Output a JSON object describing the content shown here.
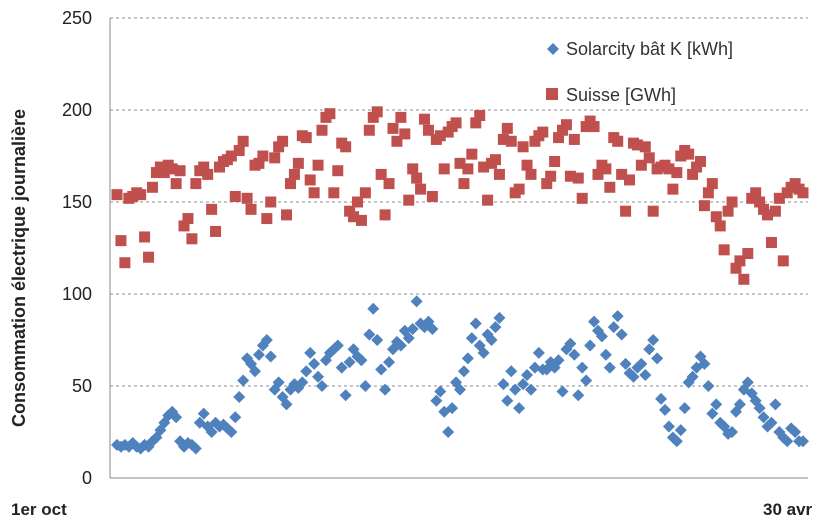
{
  "chart_data": {
    "type": "scatter",
    "ylabel": "Consommation électrique journalière",
    "ylim": [
      0,
      250
    ],
    "yticks": [
      "0",
      "50",
      "100",
      "150",
      "200",
      "250"
    ],
    "ytick_values": [
      0,
      50,
      100,
      150,
      200,
      250
    ],
    "x_start_label": "1er oct",
    "x_end_label": "30 avr",
    "grid": "horizontal-dashed",
    "legend_placement": "top-right",
    "colors": {
      "solarcity": "#4F81BD",
      "suisse": "#C0504D"
    },
    "series": [
      {
        "name": "Solarcity bât K [kWh]",
        "marker": "diamond",
        "values": [
          18,
          17,
          18,
          17,
          19,
          17,
          16,
          18,
          17,
          20,
          22,
          26,
          30,
          34,
          36,
          33,
          20,
          17,
          19,
          18,
          16,
          30,
          35,
          28,
          25,
          30,
          28,
          29,
          27,
          25,
          33,
          44,
          53,
          65,
          62,
          58,
          67,
          72,
          75,
          66,
          48,
          52,
          44,
          40,
          48,
          51,
          49,
          52,
          58,
          68,
          62,
          55,
          50,
          64,
          68,
          70,
          72,
          60,
          45,
          63,
          70,
          66,
          64,
          50,
          78,
          92,
          75,
          59,
          48,
          63,
          70,
          74,
          72,
          80,
          76,
          81,
          96,
          84,
          82,
          85,
          81,
          42,
          47,
          36,
          25,
          38,
          52,
          48,
          58,
          65,
          76,
          84,
          72,
          68,
          78,
          75,
          82,
          87,
          51,
          42,
          58,
          48,
          38,
          51,
          56,
          48,
          60,
          68,
          59,
          59,
          63,
          60,
          64,
          47,
          70,
          73,
          67,
          45,
          60,
          53,
          72,
          85,
          80,
          77,
          67,
          60,
          82,
          88,
          78,
          62,
          57,
          55,
          60,
          62,
          56,
          70,
          75,
          65,
          43,
          37,
          28,
          22,
          20,
          26,
          38,
          52,
          55,
          60,
          66,
          62,
          50,
          35,
          40,
          30,
          28,
          24,
          25,
          36,
          40,
          48,
          52,
          46,
          42,
          38,
          33,
          28,
          30,
          40,
          25,
          22,
          20,
          27,
          25,
          20,
          20
        ]
      },
      {
        "name": "Suisse [GWh]",
        "marker": "square",
        "values": [
          154,
          129,
          117,
          152,
          153,
          155,
          154,
          131,
          120,
          158,
          166,
          169,
          166,
          170,
          168,
          160,
          167,
          137,
          141,
          130,
          160,
          167,
          169,
          165,
          146,
          134,
          169,
          172,
          173,
          175,
          153,
          178,
          183,
          152,
          146,
          170,
          171,
          175,
          141,
          150,
          174,
          180,
          183,
          143,
          160,
          165,
          171,
          186,
          185,
          162,
          155,
          170,
          189,
          196,
          198,
          155,
          167,
          182,
          180,
          145,
          142,
          150,
          140,
          155,
          189,
          196,
          199,
          165,
          143,
          160,
          190,
          183,
          196,
          187,
          151,
          168,
          163,
          157,
          195,
          189,
          153,
          184,
          186,
          168,
          188,
          191,
          193,
          171,
          160,
          168,
          176,
          193,
          197,
          169,
          151,
          171,
          173,
          165,
          184,
          190,
          183,
          155,
          157,
          180,
          170,
          165,
          183,
          186,
          188,
          160,
          164,
          172,
          185,
          189,
          192,
          164,
          184,
          163,
          152,
          191,
          194,
          191,
          165,
          170,
          168,
          158,
          185,
          183,
          165,
          145,
          162,
          182,
          181,
          170,
          180,
          174,
          145,
          168,
          169,
          170,
          168,
          157,
          166,
          175,
          178,
          176,
          165,
          169,
          172,
          148,
          155,
          160,
          142,
          137,
          124,
          145,
          150,
          114,
          118,
          108,
          122,
          152,
          155,
          150,
          146,
          143,
          128,
          145,
          152,
          118,
          155,
          158,
          160,
          157,
          155
        ]
      }
    ]
  }
}
